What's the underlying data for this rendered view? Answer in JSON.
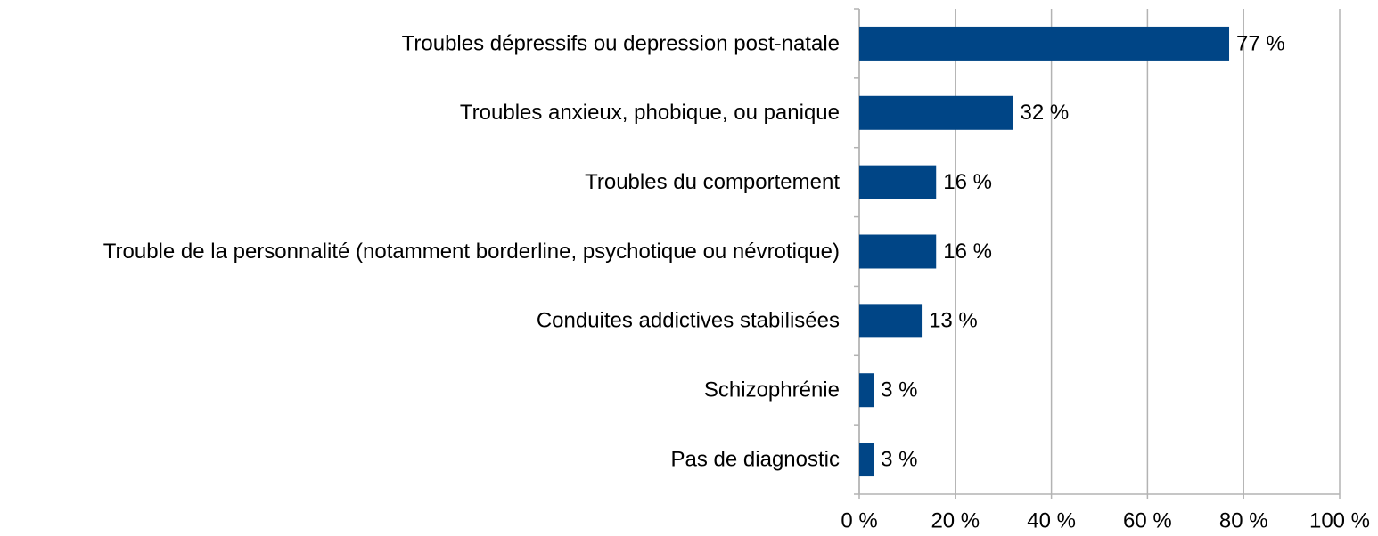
{
  "chart_data": {
    "type": "hbar",
    "categories": [
      "Troubles dépressifs ou depression post-natale",
      "Troubles anxieux, phobique, ou panique",
      "Troubles du comportement",
      "Trouble de la personnalité (notamment borderline, psychotique ou névrotique)",
      "Conduites addictives stabilisées",
      "Schizophrénie",
      "Pas de diagnostic"
    ],
    "values": [
      77,
      32,
      16,
      16,
      13,
      3,
      3
    ],
    "value_labels": [
      "77 %",
      "32 %",
      "16 %",
      "16 %",
      "13 %",
      "3 %",
      "3 %"
    ],
    "color": "#004586",
    "xlim": [
      0,
      100
    ],
    "xticks": [
      {
        "value": 0,
        "label": "0 %"
      },
      {
        "value": 20,
        "label": "20 %"
      },
      {
        "value": 40,
        "label": "40 %"
      },
      {
        "value": 60,
        "label": "60 %"
      },
      {
        "value": 80,
        "label": "80 %"
      },
      {
        "value": 100,
        "label": "100 %"
      }
    ],
    "grid": true
  }
}
